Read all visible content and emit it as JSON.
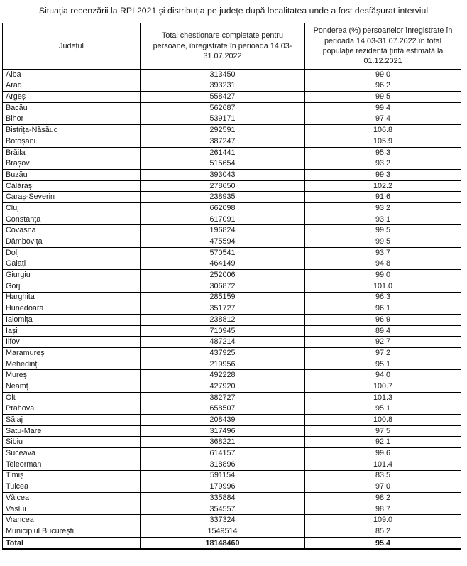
{
  "title": "Situația recenzării la RPL2021 și distribuția pe județe după localitatea unde a fost desfășurat interviul",
  "table": {
    "columns": [
      "Județul",
      "Total chestionare completate pentru persoane, înregistrate în perioada 14.03-31.07.2022",
      "Ponderea (%) persoanelor înregistrate în perioada 14.03-31.07.2022 în total populație rezidentă țintă estimată la 01.12.2021"
    ],
    "rows": [
      {
        "county": "Alba",
        "total": "313450",
        "share": "99.0"
      },
      {
        "county": "Arad",
        "total": "393231",
        "share": "96.2"
      },
      {
        "county": "Argeș",
        "total": "558427",
        "share": "99.5"
      },
      {
        "county": "Bacău",
        "total": "562687",
        "share": "99.4"
      },
      {
        "county": "Bihor",
        "total": "539171",
        "share": "97.4"
      },
      {
        "county": "Bistrița-Năsăud",
        "total": "292591",
        "share": "106.8"
      },
      {
        "county": "Botoșani",
        "total": "387247",
        "share": "105.9"
      },
      {
        "county": "Brăila",
        "total": "261441",
        "share": "95.3"
      },
      {
        "county": "Brașov",
        "total": "515654",
        "share": "93.2"
      },
      {
        "county": "Buzău",
        "total": "393043",
        "share": "99.3"
      },
      {
        "county": "Călărași",
        "total": "278650",
        "share": "102.2"
      },
      {
        "county": "Caraș-Severin",
        "total": "238935",
        "share": "91.6"
      },
      {
        "county": "Cluj",
        "total": "662098",
        "share": "93.2"
      },
      {
        "county": "Constanța",
        "total": "617091",
        "share": "93.1"
      },
      {
        "county": "Covasna",
        "total": "196824",
        "share": "99.5"
      },
      {
        "county": "Dâmbovița",
        "total": "475594",
        "share": "99.5"
      },
      {
        "county": "Dolj",
        "total": "570541",
        "share": "93.7"
      },
      {
        "county": "Galați",
        "total": "464149",
        "share": "94.8"
      },
      {
        "county": "Giurgiu",
        "total": "252006",
        "share": "99.0"
      },
      {
        "county": "Gorj",
        "total": "306872",
        "share": "101.0"
      },
      {
        "county": "Harghita",
        "total": "285159",
        "share": "96.3"
      },
      {
        "county": "Hunedoara",
        "total": "351727",
        "share": "96.1"
      },
      {
        "county": "Ialomița",
        "total": "238812",
        "share": "96.9"
      },
      {
        "county": "Iași",
        "total": "710945",
        "share": "89.4"
      },
      {
        "county": "Ilfov",
        "total": "487214",
        "share": "92.7"
      },
      {
        "county": "Maramureș",
        "total": "437925",
        "share": "97.2"
      },
      {
        "county": "Mehedinți",
        "total": "219956",
        "share": "95.1"
      },
      {
        "county": "Mureș",
        "total": "492228",
        "share": "94.0"
      },
      {
        "county": "Neamț",
        "total": "427920",
        "share": "100.7"
      },
      {
        "county": "Olt",
        "total": "382727",
        "share": "101.3"
      },
      {
        "county": "Prahova",
        "total": "658507",
        "share": "95.1"
      },
      {
        "county": "Sălaj",
        "total": "208439",
        "share": "100.8"
      },
      {
        "county": "Satu-Mare",
        "total": "317496",
        "share": "97.5"
      },
      {
        "county": "Sibiu",
        "total": "368221",
        "share": "92.1"
      },
      {
        "county": "Suceava",
        "total": "614157",
        "share": "99.6"
      },
      {
        "county": "Teleorman",
        "total": "318896",
        "share": "101.4"
      },
      {
        "county": "Timiș",
        "total": "591154",
        "share": "83.5"
      },
      {
        "county": "Tulcea",
        "total": "179996",
        "share": "97.0"
      },
      {
        "county": "Vâlcea",
        "total": "335884",
        "share": "98.2"
      },
      {
        "county": "Vaslui",
        "total": "354557",
        "share": "98.7"
      },
      {
        "county": "Vrancea",
        "total": "337324",
        "share": "109.0"
      },
      {
        "county": "Municipiul București",
        "total": "1549514",
        "share": "85.2"
      }
    ],
    "total_row": {
      "county": "Total",
      "total": "18148460",
      "share": "95.4"
    }
  }
}
